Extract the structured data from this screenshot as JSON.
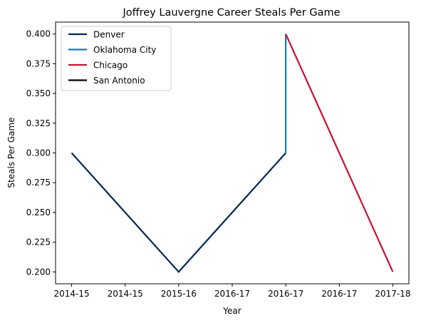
{
  "chart_data": {
    "type": "line",
    "title": "Joffrey Lauvergne Career Steals Per Game",
    "xlabel": "Year",
    "ylabel": "Steals Per Game",
    "x_tick_labels": [
      "2014-15",
      "2014-15",
      "2015-16",
      "2016-17",
      "2016-17",
      "2016-17",
      "2017-18"
    ],
    "xlim": [
      -0.3,
      6.3
    ],
    "ylim": [
      0.19,
      0.41
    ],
    "y_ticks": [
      0.2,
      0.225,
      0.25,
      0.275,
      0.3,
      0.325,
      0.35,
      0.375,
      0.4
    ],
    "y_tick_labels": [
      "0.200",
      "0.225",
      "0.250",
      "0.275",
      "0.300",
      "0.325",
      "0.350",
      "0.375",
      "0.400"
    ],
    "grid": false,
    "legend_position": "top-left",
    "series": [
      {
        "name": "Denver",
        "color": "#002855",
        "points": [
          [
            0,
            0.3
          ],
          [
            2,
            0.2
          ],
          [
            4,
            0.3
          ]
        ]
      },
      {
        "name": "Oklahoma City",
        "color": "#0C7DB8",
        "points": [
          [
            4,
            0.3
          ],
          [
            4,
            0.4
          ]
        ]
      },
      {
        "name": "Chicago",
        "color": "#C8102E",
        "points": [
          [
            4,
            0.4
          ],
          [
            6,
            0.2
          ]
        ]
      },
      {
        "name": "San Antonio",
        "color": "#000000",
        "points": []
      }
    ]
  }
}
